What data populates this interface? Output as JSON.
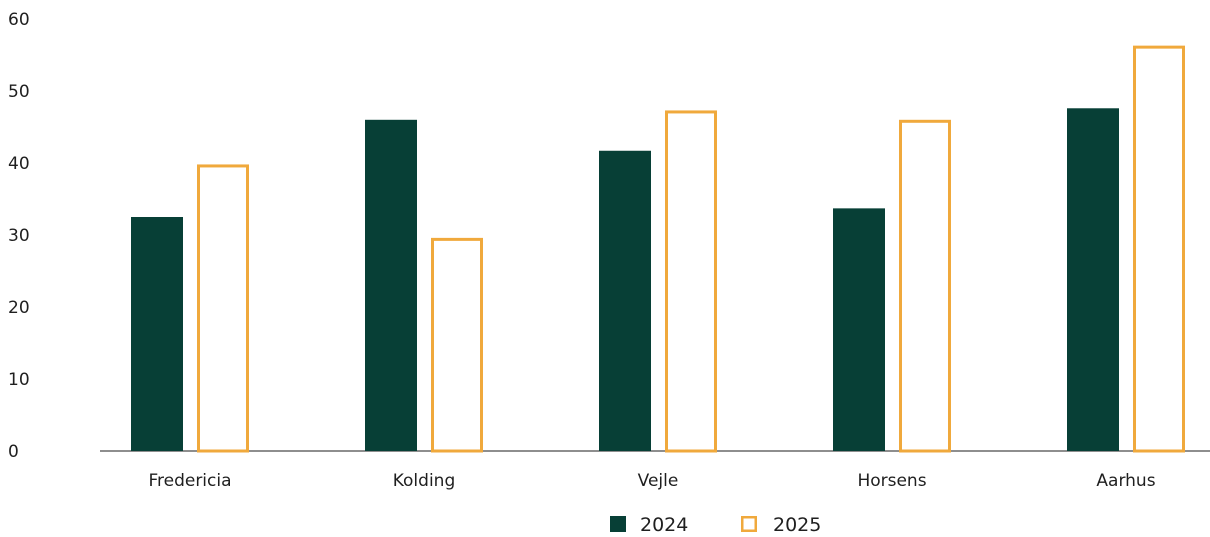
{
  "chart_data": {
    "type": "bar",
    "categories": [
      "Fredericia",
      "Kolding",
      "Vejle",
      "Horsens",
      "Aarhus"
    ],
    "series": [
      {
        "name": "2024",
        "values": [
          32.5,
          46,
          41.7,
          33.7,
          47.6
        ],
        "color": "#073f36",
        "style": "filled"
      },
      {
        "name": "2025",
        "values": [
          39.8,
          29.6,
          47.3,
          46,
          56.3
        ],
        "color": "#f0a93c",
        "style": "outline"
      }
    ],
    "yticks": [
      "0",
      "10",
      "20",
      "30",
      "40",
      "50",
      "60"
    ],
    "ylim": [
      0,
      60
    ],
    "grid": false,
    "legend_position": "bottom-center",
    "title": "",
    "xlabel": "",
    "ylabel": ""
  }
}
